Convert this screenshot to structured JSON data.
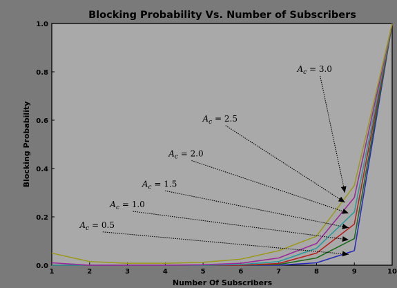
{
  "chart_data": {
    "type": "line",
    "title": "Blocking Probability Vs. Number of Subscribers",
    "xlabel": "Number Of Subscribers",
    "ylabel": "Blocking Probability",
    "xlim": [
      1,
      10
    ],
    "ylim": [
      0,
      1.0
    ],
    "x_ticks": [
      "1",
      "2",
      "3",
      "4",
      "5",
      "6",
      "7",
      "8",
      "9",
      "10"
    ],
    "y_ticks": [
      "0.0",
      "0.2",
      "0.4",
      "0.6",
      "0.8",
      "1.0"
    ],
    "grid": false,
    "legend": "none",
    "x": [
      1,
      2,
      3,
      4,
      5,
      6,
      7,
      8,
      9,
      10
    ],
    "series": [
      {
        "color": "#2b2bb8",
        "values": [
          0.0,
          0.0,
          0.0,
          0.0,
          0.0,
          0.0,
          0.0,
          0.01,
          0.06,
          1.0
        ]
      },
      {
        "color": "#1d6b1d",
        "values": [
          0.0,
          0.0,
          0.0,
          0.0,
          0.0,
          0.0,
          0.003,
          0.03,
          0.11,
          1.0
        ]
      },
      {
        "color": "#b82020",
        "values": [
          0.0,
          0.0,
          0.0,
          0.0,
          0.0,
          0.0,
          0.007,
          0.05,
          0.17,
          1.0
        ]
      },
      {
        "color": "#2a9a9a",
        "values": [
          0.0,
          0.0,
          0.0,
          0.0,
          0.0,
          0.003,
          0.015,
          0.07,
          0.22,
          1.0
        ]
      },
      {
        "color": "#9a2a9a",
        "values": [
          0.01,
          0.0,
          0.0,
          0.0,
          0.002,
          0.008,
          0.03,
          0.09,
          0.28,
          1.0
        ]
      },
      {
        "color": "#9a9a20",
        "values": [
          0.05,
          0.015,
          0.008,
          0.008,
          0.012,
          0.025,
          0.06,
          0.12,
          0.33,
          1.0
        ]
      }
    ],
    "annotations": [
      {
        "label": "A_c = 0.5",
        "text_xy": [
          2.2,
          0.155
        ],
        "target_xy": [
          8.85,
          0.045
        ]
      },
      {
        "label": "A_c = 1.0",
        "text_xy": [
          3.0,
          0.24
        ],
        "target_xy": [
          8.85,
          0.105
        ]
      },
      {
        "label": "A_c = 1.5",
        "text_xy": [
          3.85,
          0.325
        ],
        "target_xy": [
          8.85,
          0.155
        ]
      },
      {
        "label": "A_c = 2.0",
        "text_xy": [
          4.55,
          0.45
        ],
        "target_xy": [
          8.85,
          0.215
        ]
      },
      {
        "label": "A_c = 2.5",
        "text_xy": [
          5.45,
          0.595
        ],
        "target_xy": [
          8.75,
          0.26
        ]
      },
      {
        "label": "A_c = 3.0",
        "text_xy": [
          7.95,
          0.8
        ],
        "target_xy": [
          8.75,
          0.3
        ]
      }
    ]
  }
}
